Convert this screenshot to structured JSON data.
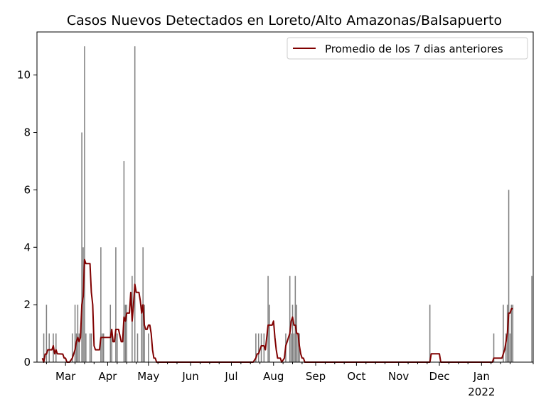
{
  "chart_data": {
    "type": "bar",
    "title": "Casos Nuevos Detectados en Loreto/Alto Amazonas/Balsapuerto",
    "xlabel": "",
    "ylabel": "",
    "x_range": [
      "2021-02-08",
      "2022-02-08"
    ],
    "ylim": [
      0,
      11.5
    ],
    "y_ticks": [
      0,
      2,
      4,
      6,
      8,
      10
    ],
    "x_ticks": [
      {
        "date": "2021-03-01",
        "label": "Mar"
      },
      {
        "date": "2021-04-01",
        "label": "Apr"
      },
      {
        "date": "2021-05-01",
        "label": "May"
      },
      {
        "date": "2021-06-01",
        "label": "Jun"
      },
      {
        "date": "2021-07-01",
        "label": "Jul"
      },
      {
        "date": "2021-08-01",
        "label": "Aug"
      },
      {
        "date": "2021-09-01",
        "label": "Sep"
      },
      {
        "date": "2021-10-01",
        "label": "Oct"
      },
      {
        "date": "2021-11-01",
        "label": "Nov"
      },
      {
        "date": "2021-12-01",
        "label": "Dec"
      },
      {
        "date": "2022-01-01",
        "label": "Jan"
      }
    ],
    "x_tick_sublabel": "2022",
    "grid": false,
    "legend": {
      "position": "upper-right",
      "entries": [
        "Promedio de los 7 dias anteriores"
      ]
    },
    "colors": {
      "bars": "#808080",
      "line": "#800000"
    },
    "series": [
      {
        "type": "bar",
        "points": [
          [
            "2021-02-13",
            1
          ],
          [
            "2021-02-15",
            2
          ],
          [
            "2021-02-17",
            1
          ],
          [
            "2021-02-20",
            1
          ],
          [
            "2021-02-22",
            1
          ],
          [
            "2021-03-06",
            1
          ],
          [
            "2021-03-08",
            2
          ],
          [
            "2021-03-09",
            1
          ],
          [
            "2021-03-10",
            2
          ],
          [
            "2021-03-11",
            1
          ],
          [
            "2021-03-13",
            8
          ],
          [
            "2021-03-14",
            4
          ],
          [
            "2021-03-15",
            11
          ],
          [
            "2021-03-16",
            1
          ],
          [
            "2021-03-19",
            1
          ],
          [
            "2021-03-20",
            1
          ],
          [
            "2021-03-27",
            4
          ],
          [
            "2021-03-28",
            1
          ],
          [
            "2021-03-29",
            1
          ],
          [
            "2021-04-03",
            2
          ],
          [
            "2021-04-04",
            1
          ],
          [
            "2021-04-07",
            4
          ],
          [
            "2021-04-08",
            1
          ],
          [
            "2021-04-13",
            7
          ],
          [
            "2021-04-14",
            2
          ],
          [
            "2021-04-15",
            2
          ],
          [
            "2021-04-19",
            3
          ],
          [
            "2021-04-21",
            11
          ],
          [
            "2021-04-23",
            1
          ],
          [
            "2021-04-26",
            2
          ],
          [
            "2021-04-27",
            4
          ],
          [
            "2021-04-28",
            2
          ],
          [
            "2021-05-01",
            1
          ],
          [
            "2021-07-19",
            1
          ],
          [
            "2021-07-21",
            1
          ],
          [
            "2021-07-23",
            1
          ],
          [
            "2021-07-25",
            1
          ],
          [
            "2021-07-28",
            3
          ],
          [
            "2021-07-29",
            2
          ],
          [
            "2021-08-10",
            1
          ],
          [
            "2021-08-13",
            3
          ],
          [
            "2021-08-14",
            1
          ],
          [
            "2021-08-15",
            2
          ],
          [
            "2021-08-16",
            1
          ],
          [
            "2021-08-17",
            3
          ],
          [
            "2021-08-18",
            2
          ],
          [
            "2021-08-19",
            1
          ],
          [
            "2021-08-20",
            1
          ],
          [
            "2021-11-24",
            2
          ],
          [
            "2022-01-10",
            1
          ],
          [
            "2022-01-17",
            2
          ],
          [
            "2022-01-19",
            1
          ],
          [
            "2022-01-20",
            2
          ],
          [
            "2022-01-21",
            6
          ],
          [
            "2022-01-22",
            1
          ],
          [
            "2022-01-23",
            2
          ],
          [
            "2022-01-24",
            2
          ],
          [
            "2022-02-07",
            3
          ]
        ]
      },
      {
        "type": "line",
        "name": "Promedio de los 7 dias anteriores",
        "points": [
          [
            "2021-02-12",
            0.14
          ],
          [
            "2021-02-13",
            0.0
          ],
          [
            "2021-02-14",
            0.28
          ],
          [
            "2021-02-15",
            0.28
          ],
          [
            "2021-02-16",
            0.43
          ],
          [
            "2021-02-19",
            0.43
          ],
          [
            "2021-02-20",
            0.57
          ],
          [
            "2021-02-21",
            0.29
          ],
          [
            "2021-02-22",
            0.43
          ],
          [
            "2021-02-23",
            0.29
          ],
          [
            "2021-02-27",
            0.28
          ],
          [
            "2021-02-28",
            0.14
          ],
          [
            "2021-03-01",
            0.14
          ],
          [
            "2021-03-02",
            0.0
          ],
          [
            "2021-03-04",
            0.0
          ],
          [
            "2021-03-06",
            0.14
          ],
          [
            "2021-03-08",
            0.43
          ],
          [
            "2021-03-09",
            0.71
          ],
          [
            "2021-03-10",
            0.86
          ],
          [
            "2021-03-11",
            0.71
          ],
          [
            "2021-03-12",
            0.86
          ],
          [
            "2021-03-13",
            2.0
          ],
          [
            "2021-03-14",
            2.29
          ],
          [
            "2021-03-15",
            3.57
          ],
          [
            "2021-03-16",
            3.43
          ],
          [
            "2021-03-19",
            3.43
          ],
          [
            "2021-03-20",
            2.43
          ],
          [
            "2021-03-21",
            2.0
          ],
          [
            "2021-03-22",
            0.57
          ],
          [
            "2021-03-23",
            0.43
          ],
          [
            "2021-03-26",
            0.43
          ],
          [
            "2021-03-27",
            0.86
          ],
          [
            "2021-04-03",
            0.86
          ],
          [
            "2021-04-04",
            1.14
          ],
          [
            "2021-04-05",
            0.71
          ],
          [
            "2021-04-06",
            0.71
          ],
          [
            "2021-04-07",
            1.14
          ],
          [
            "2021-04-09",
            1.14
          ],
          [
            "2021-04-11",
            0.71
          ],
          [
            "2021-04-12",
            0.71
          ],
          [
            "2021-04-13",
            1.57
          ],
          [
            "2021-04-14",
            1.43
          ],
          [
            "2021-04-15",
            1.71
          ],
          [
            "2021-04-17",
            1.71
          ],
          [
            "2021-04-18",
            2.43
          ],
          [
            "2021-04-19",
            1.43
          ],
          [
            "2021-04-20",
            2.0
          ],
          [
            "2021-04-21",
            2.71
          ],
          [
            "2021-04-22",
            2.43
          ],
          [
            "2021-04-24",
            2.43
          ],
          [
            "2021-04-25",
            2.14
          ],
          [
            "2021-04-26",
            1.71
          ],
          [
            "2021-04-27",
            2.0
          ],
          [
            "2021-04-28",
            1.29
          ],
          [
            "2021-04-29",
            1.14
          ],
          [
            "2021-04-30",
            1.14
          ],
          [
            "2021-05-01",
            1.29
          ],
          [
            "2021-05-02",
            1.29
          ],
          [
            "2021-05-03",
            1.0
          ],
          [
            "2021-05-04",
            0.43
          ],
          [
            "2021-05-05",
            0.14
          ],
          [
            "2021-05-06",
            0.14
          ],
          [
            "2021-05-07",
            0.0
          ],
          [
            "2021-07-17",
            0.0
          ],
          [
            "2021-07-19",
            0.14
          ],
          [
            "2021-07-20",
            0.29
          ],
          [
            "2021-07-21",
            0.29
          ],
          [
            "2021-07-22",
            0.43
          ],
          [
            "2021-07-23",
            0.57
          ],
          [
            "2021-07-24",
            0.57
          ],
          [
            "2021-07-25",
            0.57
          ],
          [
            "2021-07-26",
            0.43
          ],
          [
            "2021-07-27",
            0.86
          ],
          [
            "2021-07-28",
            1.29
          ],
          [
            "2021-07-31",
            1.29
          ],
          [
            "2021-08-01",
            1.43
          ],
          [
            "2021-08-02",
            0.86
          ],
          [
            "2021-08-03",
            0.43
          ],
          [
            "2021-08-04",
            0.14
          ],
          [
            "2021-08-06",
            0.14
          ],
          [
            "2021-08-07",
            0.0
          ],
          [
            "2021-08-09",
            0.14
          ],
          [
            "2021-08-10",
            0.57
          ],
          [
            "2021-08-11",
            0.71
          ],
          [
            "2021-08-12",
            0.86
          ],
          [
            "2021-08-13",
            1.0
          ],
          [
            "2021-08-14",
            1.43
          ],
          [
            "2021-08-15",
            1.57
          ],
          [
            "2021-08-16",
            1.29
          ],
          [
            "2021-08-17",
            1.29
          ],
          [
            "2021-08-18",
            1.0
          ],
          [
            "2021-08-19",
            1.0
          ],
          [
            "2021-08-20",
            0.57
          ],
          [
            "2021-08-21",
            0.29
          ],
          [
            "2021-08-22",
            0.14
          ],
          [
            "2021-08-23",
            0.14
          ],
          [
            "2021-08-24",
            0.0
          ],
          [
            "2021-11-24",
            0.0
          ],
          [
            "2021-11-25",
            0.29
          ],
          [
            "2021-12-01",
            0.29
          ],
          [
            "2021-12-02",
            0.0
          ],
          [
            "2022-01-09",
            0.0
          ],
          [
            "2022-01-10",
            0.14
          ],
          [
            "2022-01-16",
            0.14
          ],
          [
            "2022-01-17",
            0.29
          ],
          [
            "2022-01-18",
            0.43
          ],
          [
            "2022-01-19",
            0.71
          ],
          [
            "2022-01-20",
            1.0
          ],
          [
            "2022-01-21",
            1.71
          ],
          [
            "2022-01-22",
            1.71
          ],
          [
            "2022-01-23",
            1.86
          ],
          [
            "2022-01-24",
            1.86
          ]
        ]
      }
    ]
  }
}
